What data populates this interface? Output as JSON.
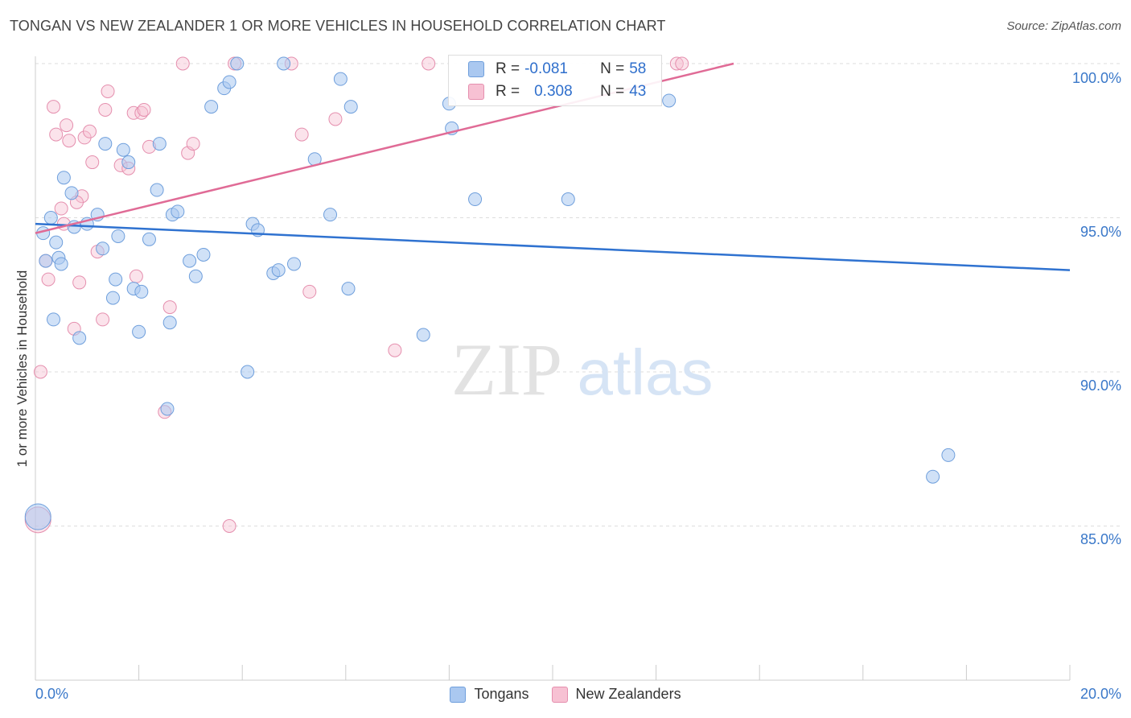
{
  "title": "TONGAN VS NEW ZEALANDER 1 OR MORE VEHICLES IN HOUSEHOLD CORRELATION CHART",
  "source": "Source: ZipAtlas.com",
  "watermark": {
    "zip": "ZIP",
    "atlas": "atlas"
  },
  "colors": {
    "tongans": "#aac8f0",
    "tongans_line": "#2f72d0",
    "nz": "#f7c1d3",
    "nz_line": "#e06b96",
    "axis_text": "#3a78c9"
  },
  "legend": {
    "tongans": {
      "r_label": "R =",
      "r_value": "-0.081",
      "n_label": "N =",
      "n_value": "58"
    },
    "nz": {
      "r_label": "R =",
      "r_value": "0.308",
      "n_label": "N =",
      "n_value": "43"
    }
  },
  "bottom_legend": {
    "tongans": "Tongans",
    "nz": "New Zealanders"
  },
  "chart_data": {
    "type": "scatter",
    "title": "TONGAN VS NEW ZEALANDER 1 OR MORE VEHICLES IN HOUSEHOLD CORRELATION CHART",
    "xlabel": "",
    "ylabel": "1 or more Vehicles in Household",
    "xlim": [
      0,
      20
    ],
    "ylim": [
      80,
      100.5
    ],
    "x_tick_labels": {
      "min": "0.0%",
      "max": "20.0%"
    },
    "y_ticks": [
      {
        "value": 100,
        "label": "100.0%"
      },
      {
        "value": 95,
        "label": "95.0%"
      },
      {
        "value": 90,
        "label": "90.0%"
      },
      {
        "value": 85,
        "label": "85.0%"
      }
    ],
    "grid": true,
    "legend_position": "top-center",
    "series": [
      {
        "name": "Tongans",
        "r": -0.081,
        "n": 58,
        "trend": {
          "x": [
            0,
            20
          ],
          "y": [
            94.8,
            93.3
          ]
        },
        "points": [
          [
            0.05,
            85.3
          ],
          [
            0.15,
            94.5
          ],
          [
            0.2,
            93.6
          ],
          [
            0.3,
            95.0
          ],
          [
            0.35,
            91.7
          ],
          [
            0.4,
            94.2
          ],
          [
            0.45,
            93.7
          ],
          [
            0.5,
            93.5
          ],
          [
            0.55,
            96.3
          ],
          [
            0.7,
            95.8
          ],
          [
            0.75,
            94.7
          ],
          [
            0.85,
            91.1
          ],
          [
            1.0,
            94.8
          ],
          [
            1.2,
            95.1
          ],
          [
            1.3,
            94.0
          ],
          [
            1.35,
            97.4
          ],
          [
            1.5,
            92.4
          ],
          [
            1.55,
            93.0
          ],
          [
            1.6,
            94.4
          ],
          [
            1.7,
            97.2
          ],
          [
            1.8,
            96.8
          ],
          [
            1.9,
            92.7
          ],
          [
            2.0,
            91.3
          ],
          [
            2.05,
            92.6
          ],
          [
            2.2,
            94.3
          ],
          [
            2.35,
            95.9
          ],
          [
            2.4,
            97.4
          ],
          [
            2.55,
            88.8
          ],
          [
            2.6,
            91.6
          ],
          [
            2.65,
            95.1
          ],
          [
            2.75,
            95.2
          ],
          [
            2.98,
            93.6
          ],
          [
            3.1,
            93.1
          ],
          [
            3.25,
            93.8
          ],
          [
            3.4,
            98.6
          ],
          [
            3.65,
            99.2
          ],
          [
            3.75,
            99.4
          ],
          [
            3.9,
            100.0
          ],
          [
            4.1,
            90.0
          ],
          [
            4.2,
            94.8
          ],
          [
            4.3,
            94.6
          ],
          [
            4.6,
            93.2
          ],
          [
            4.7,
            93.3
          ],
          [
            4.8,
            100.0
          ],
          [
            5.0,
            93.5
          ],
          [
            5.4,
            96.9
          ],
          [
            5.7,
            95.1
          ],
          [
            5.9,
            99.5
          ],
          [
            6.05,
            92.7
          ],
          [
            6.1,
            98.6
          ],
          [
            7.5,
            91.2
          ],
          [
            8.0,
            98.7
          ],
          [
            8.05,
            97.9
          ],
          [
            8.5,
            95.6
          ],
          [
            10.3,
            95.6
          ],
          [
            12.25,
            98.8
          ],
          [
            17.35,
            86.6
          ],
          [
            17.65,
            87.3
          ]
        ]
      },
      {
        "name": "New Zealanders",
        "r": 0.308,
        "n": 43,
        "trend": {
          "x": [
            0,
            13.5
          ],
          "y": [
            94.5,
            100.0
          ]
        },
        "points": [
          [
            0.05,
            85.2
          ],
          [
            0.1,
            90.0
          ],
          [
            0.2,
            93.6
          ],
          [
            0.25,
            93.0
          ],
          [
            0.4,
            97.7
          ],
          [
            0.5,
            95.3
          ],
          [
            0.55,
            94.8
          ],
          [
            0.6,
            98.0
          ],
          [
            0.65,
            97.5
          ],
          [
            0.75,
            91.4
          ],
          [
            0.85,
            92.9
          ],
          [
            0.9,
            95.7
          ],
          [
            0.95,
            97.6
          ],
          [
            1.05,
            97.8
          ],
          [
            1.1,
            96.8
          ],
          [
            1.2,
            93.9
          ],
          [
            1.3,
            91.7
          ],
          [
            1.35,
            98.5
          ],
          [
            1.4,
            99.1
          ],
          [
            1.65,
            96.7
          ],
          [
            1.8,
            96.6
          ],
          [
            1.9,
            98.4
          ],
          [
            1.95,
            93.1
          ],
          [
            2.05,
            98.4
          ],
          [
            2.1,
            98.5
          ],
          [
            2.2,
            97.3
          ],
          [
            2.5,
            88.7
          ],
          [
            2.6,
            92.1
          ],
          [
            2.85,
            100.0
          ],
          [
            2.95,
            97.1
          ],
          [
            3.05,
            97.4
          ],
          [
            3.75,
            85.0
          ],
          [
            3.85,
            100.0
          ],
          [
            4.95,
            100.0
          ],
          [
            5.15,
            97.7
          ],
          [
            5.3,
            92.6
          ],
          [
            5.8,
            98.2
          ],
          [
            6.95,
            90.7
          ],
          [
            7.6,
            100.0
          ],
          [
            12.4,
            100.0
          ],
          [
            12.5,
            100.0
          ],
          [
            0.35,
            98.6
          ],
          [
            0.8,
            95.5
          ]
        ]
      }
    ]
  }
}
